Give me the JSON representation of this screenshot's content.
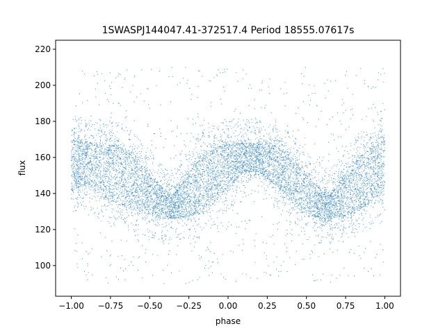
{
  "chart_data": {
    "type": "scatter",
    "title": "1SWASPJ144047.41-372517.4 Period 18555.07617s",
    "xlabel": "phase",
    "ylabel": "flux",
    "xlim": [
      -1.1,
      1.1
    ],
    "ylim": [
      83,
      225
    ],
    "x_ticks": [
      -1.0,
      -0.75,
      -0.5,
      -0.25,
      0.0,
      0.25,
      0.5,
      0.75,
      1.0
    ],
    "x_tick_labels": [
      "−1.00",
      "−0.75",
      "−0.50",
      "−0.25",
      "0.00",
      "0.25",
      "0.50",
      "0.75",
      "1.00"
    ],
    "y_ticks": [
      100,
      120,
      140,
      160,
      180,
      200,
      220
    ],
    "y_tick_labels": [
      "100",
      "120",
      "140",
      "160",
      "180",
      "200",
      "220"
    ],
    "grid": false,
    "point_color": "#1f77b4",
    "series": [
      {
        "phase_range": [
          -1.0,
          1.0
        ],
        "band_profile": {
          "phase": [
            -1.0,
            -0.9,
            -0.8,
            -0.7,
            -0.6,
            -0.5,
            -0.4,
            -0.35,
            -0.3,
            -0.2,
            -0.1,
            0.0,
            0.1,
            0.2,
            0.3,
            0.4,
            0.5,
            0.6,
            0.65,
            0.7,
            0.8,
            0.9,
            1.0
          ],
          "upper": [
            169,
            168,
            167,
            166,
            160,
            150,
            141,
            139,
            145,
            157,
            164,
            167,
            168,
            167,
            166,
            160,
            150,
            141,
            139,
            145,
            157,
            164,
            169
          ],
          "lower": [
            142,
            146,
            138,
            135,
            132,
            128,
            126,
            126,
            127,
            129,
            135,
            143,
            152,
            152,
            145,
            136,
            128,
            126,
            126,
            127,
            129,
            135,
            142
          ]
        },
        "outlier_range": [
          90,
          210
        ]
      }
    ]
  }
}
